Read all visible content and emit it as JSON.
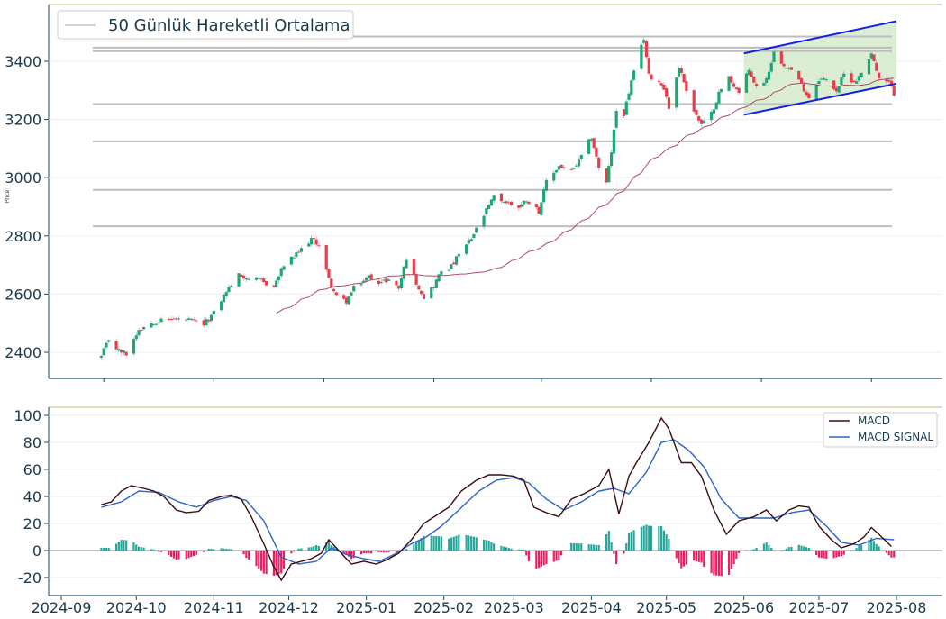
{
  "chart_data": [
    {
      "type": "candlestick",
      "panel": "price",
      "ylabel": "Price",
      "ylim": [
        2355,
        3570
      ],
      "yticks": [
        2400,
        2600,
        2800,
        3000,
        3200,
        3400
      ],
      "legend": {
        "placement": "top-left",
        "entries": [
          "50 Günlük Hareketli Ortalama"
        ]
      },
      "grid": true,
      "colors": {
        "up": "#1aa877",
        "down": "#ee3b4a",
        "ma": "#b04a6a",
        "level": "#bdbdbd",
        "channel": "#1020e6",
        "channel_fill": "#cfe8c4"
      },
      "close_anchors": [
        [
          "2024-09-17",
          2385
        ],
        [
          "2024-09-20",
          2445
        ],
        [
          "2024-09-24",
          2405
        ],
        [
          "2024-09-27",
          2395
        ],
        [
          "2024-10-02",
          2480
        ],
        [
          "2024-10-08",
          2505
        ],
        [
          "2024-10-15",
          2515
        ],
        [
          "2024-10-22",
          2510
        ],
        [
          "2024-10-28",
          2495
        ],
        [
          "2024-11-01",
          2535
        ],
        [
          "2024-11-06",
          2610
        ],
        [
          "2024-11-11",
          2665
        ],
        [
          "2024-11-15",
          2655
        ],
        [
          "2024-11-20",
          2645
        ],
        [
          "2024-11-25",
          2625
        ],
        [
          "2024-11-29",
          2700
        ],
        [
          "2024-12-04",
          2735
        ],
        [
          "2024-12-10",
          2790
        ],
        [
          "2024-12-13",
          2770
        ],
        [
          "2024-12-17",
          2650
        ],
        [
          "2024-12-20",
          2590
        ],
        [
          "2024-12-24",
          2575
        ],
        [
          "2024-12-27",
          2620
        ],
        [
          "2025-01-02",
          2660
        ],
        [
          "2025-01-07",
          2640
        ],
        [
          "2025-01-10",
          2650
        ],
        [
          "2025-01-14",
          2620
        ],
        [
          "2025-01-17",
          2725
        ],
        [
          "2025-01-21",
          2640
        ],
        [
          "2025-01-24",
          2590
        ],
        [
          "2025-01-28",
          2630
        ],
        [
          "2025-01-31",
          2680
        ],
        [
          "2025-02-04",
          2695
        ],
        [
          "2025-02-07",
          2735
        ],
        [
          "2025-02-12",
          2790
        ],
        [
          "2025-02-17",
          2870
        ],
        [
          "2025-02-21",
          2935
        ],
        [
          "2025-02-26",
          2915
        ],
        [
          "2025-03-03",
          2900
        ],
        [
          "2025-03-06",
          2925
        ],
        [
          "2025-03-11",
          2885
        ],
        [
          "2025-03-14",
          2985
        ],
        [
          "2025-03-19",
          3040
        ],
        [
          "2025-03-24",
          3020
        ],
        [
          "2025-03-27",
          3055
        ],
        [
          "2025-04-01",
          3140
        ],
        [
          "2025-04-04",
          3035
        ],
        [
          "2025-04-07",
          2980
        ],
        [
          "2025-04-09",
          3090
        ],
        [
          "2025-04-11",
          3230
        ],
        [
          "2025-04-14",
          3220
        ],
        [
          "2025-04-17",
          3330
        ],
        [
          "2025-04-22",
          3480
        ],
        [
          "2025-04-24",
          3350
        ],
        [
          "2025-04-28",
          3330
        ],
        [
          "2025-04-30",
          3310
        ],
        [
          "2025-05-02",
          3240
        ],
        [
          "2025-05-06",
          3380
        ],
        [
          "2025-05-08",
          3330
        ],
        [
          "2025-05-12",
          3230
        ],
        [
          "2025-05-15",
          3180
        ],
        [
          "2025-05-19",
          3220
        ],
        [
          "2025-05-22",
          3290
        ],
        [
          "2025-05-26",
          3345
        ],
        [
          "2025-05-30",
          3290
        ],
        [
          "2025-06-03",
          3370
        ],
        [
          "2025-06-06",
          3310
        ],
        [
          "2025-06-10",
          3340
        ],
        [
          "2025-06-13",
          3430
        ],
        [
          "2025-06-17",
          3390
        ],
        [
          "2025-06-20",
          3370
        ],
        [
          "2025-06-24",
          3320
        ],
        [
          "2025-06-27",
          3275
        ],
        [
          "2025-07-01",
          3340
        ],
        [
          "2025-07-04",
          3335
        ],
        [
          "2025-07-08",
          3300
        ],
        [
          "2025-07-11",
          3355
        ],
        [
          "2025-07-15",
          3330
        ],
        [
          "2025-07-17",
          3345
        ],
        [
          "2025-07-22",
          3430
        ],
        [
          "2025-07-25",
          3335
        ],
        [
          "2025-07-29",
          3325
        ],
        [
          "2025-07-31",
          3290
        ]
      ],
      "ma_start": "2024-11-26",
      "horizontal_levels": [
        3485,
        3447,
        3435,
        3253,
        3125,
        2958,
        2833
      ],
      "channel": {
        "upper": [
          [
            "2025-06-01",
            3427
          ],
          [
            "2025-08-01",
            3538
          ]
        ],
        "lower": [
          [
            "2025-06-01",
            3216
          ],
          [
            "2025-08-01",
            3323
          ]
        ]
      }
    },
    {
      "type": "line+bar",
      "panel": "macd",
      "ylim": [
        -30,
        105
      ],
      "yticks": [
        -20,
        0,
        20,
        40,
        60,
        80,
        100
      ],
      "xticks": [
        "2024-09",
        "2024-10",
        "2024-11",
        "2024-12",
        "2025-01",
        "2025-02",
        "2025-03",
        "2025-04",
        "2025-05",
        "2025-06",
        "2025-07",
        "2025-08"
      ],
      "legend": {
        "placement": "top-right",
        "entries": [
          "MACD",
          "MACD SIGNAL"
        ]
      },
      "grid": true,
      "colors": {
        "macd": "#3a0d0d",
        "signal": "#2d62c8",
        "hist_pos": "#26a69a",
        "hist_neg": "#e91e63"
      },
      "macd_anchors": [
        [
          "2024-09-17",
          34
        ],
        [
          "2024-09-21",
          36
        ],
        [
          "2024-09-25",
          44
        ],
        [
          "2024-09-29",
          48
        ],
        [
          "2024-10-04",
          46
        ],
        [
          "2024-10-08",
          44
        ],
        [
          "2024-10-12",
          40
        ],
        [
          "2024-10-17",
          30
        ],
        [
          "2024-10-21",
          28
        ],
        [
          "2024-10-26",
          29
        ],
        [
          "2024-10-30",
          37
        ],
        [
          "2024-11-04",
          40
        ],
        [
          "2024-11-08",
          41
        ],
        [
          "2024-11-12",
          38
        ],
        [
          "2024-11-16",
          25
        ],
        [
          "2024-11-21",
          5
        ],
        [
          "2024-11-25",
          -12
        ],
        [
          "2024-11-28",
          -22
        ],
        [
          "2024-12-02",
          -10
        ],
        [
          "2024-12-06",
          -8
        ],
        [
          "2024-12-10",
          -6
        ],
        [
          "2024-12-14",
          -2
        ],
        [
          "2024-12-17",
          8
        ],
        [
          "2024-12-20",
          2
        ],
        [
          "2024-12-26",
          -10
        ],
        [
          "2024-12-31",
          -8
        ],
        [
          "2025-01-05",
          -10
        ],
        [
          "2025-01-09",
          -7
        ],
        [
          "2025-01-14",
          -2
        ],
        [
          "2025-01-19",
          8
        ],
        [
          "2025-01-24",
          20
        ],
        [
          "2025-01-29",
          26
        ],
        [
          "2025-02-03",
          32
        ],
        [
          "2025-02-08",
          44
        ],
        [
          "2025-02-14",
          52
        ],
        [
          "2025-02-19",
          56
        ],
        [
          "2025-02-24",
          56
        ],
        [
          "2025-03-01",
          55
        ],
        [
          "2025-03-05",
          52
        ],
        [
          "2025-03-09",
          32
        ],
        [
          "2025-03-14",
          28
        ],
        [
          "2025-03-19",
          25
        ],
        [
          "2025-03-24",
          38
        ],
        [
          "2025-03-29",
          42
        ],
        [
          "2025-04-04",
          48
        ],
        [
          "2025-04-08",
          60
        ],
        [
          "2025-04-12",
          27
        ],
        [
          "2025-04-16",
          55
        ],
        [
          "2025-04-19",
          65
        ],
        [
          "2025-04-24",
          80
        ],
        [
          "2025-04-29",
          98
        ],
        [
          "2025-05-02",
          90
        ],
        [
          "2025-05-07",
          65
        ],
        [
          "2025-05-11",
          65
        ],
        [
          "2025-05-15",
          55
        ],
        [
          "2025-05-20",
          30
        ],
        [
          "2025-05-25",
          12
        ],
        [
          "2025-05-30",
          22
        ],
        [
          "2025-06-05",
          25
        ],
        [
          "2025-06-10",
          30
        ],
        [
          "2025-06-14",
          22
        ],
        [
          "2025-06-19",
          30
        ],
        [
          "2025-06-23",
          33
        ],
        [
          "2025-06-27",
          32
        ],
        [
          "2025-07-01",
          18
        ],
        [
          "2025-07-06",
          8
        ],
        [
          "2025-07-10",
          2
        ],
        [
          "2025-07-15",
          5
        ],
        [
          "2025-07-19",
          10
        ],
        [
          "2025-07-22",
          17
        ],
        [
          "2025-07-25",
          12
        ],
        [
          "2025-07-30",
          3
        ]
      ],
      "signal_anchors": [
        [
          "2024-09-17",
          32
        ],
        [
          "2024-09-25",
          36
        ],
        [
          "2024-10-02",
          44
        ],
        [
          "2024-10-10",
          43
        ],
        [
          "2024-10-18",
          36
        ],
        [
          "2024-10-25",
          32
        ],
        [
          "2024-11-01",
          37
        ],
        [
          "2024-11-08",
          40
        ],
        [
          "2024-11-14",
          37
        ],
        [
          "2024-11-21",
          22
        ],
        [
          "2024-11-28",
          -5
        ],
        [
          "2024-12-05",
          -10
        ],
        [
          "2024-12-12",
          -8
        ],
        [
          "2024-12-18",
          2
        ],
        [
          "2024-12-24",
          -3
        ],
        [
          "2024-12-31",
          -6
        ],
        [
          "2025-01-06",
          -8
        ],
        [
          "2025-01-12",
          -3
        ],
        [
          "2025-01-19",
          5
        ],
        [
          "2025-01-25",
          10
        ],
        [
          "2025-01-31",
          18
        ],
        [
          "2025-02-07",
          30
        ],
        [
          "2025-02-15",
          44
        ],
        [
          "2025-02-22",
          52
        ],
        [
          "2025-03-01",
          54
        ],
        [
          "2025-03-07",
          50
        ],
        [
          "2025-03-14",
          38
        ],
        [
          "2025-03-21",
          30
        ],
        [
          "2025-03-28",
          36
        ],
        [
          "2025-04-04",
          44
        ],
        [
          "2025-04-10",
          46
        ],
        [
          "2025-04-16",
          42
        ],
        [
          "2025-04-23",
          58
        ],
        [
          "2025-04-29",
          80
        ],
        [
          "2025-05-04",
          82
        ],
        [
          "2025-05-10",
          74
        ],
        [
          "2025-05-16",
          62
        ],
        [
          "2025-05-23",
          38
        ],
        [
          "2025-05-30",
          24
        ],
        [
          "2025-06-06",
          24
        ],
        [
          "2025-06-13",
          24
        ],
        [
          "2025-06-20",
          28
        ],
        [
          "2025-06-27",
          30
        ],
        [
          "2025-07-04",
          18
        ],
        [
          "2025-07-10",
          6
        ],
        [
          "2025-07-17",
          4
        ],
        [
          "2025-07-24",
          9
        ],
        [
          "2025-07-31",
          8
        ]
      ]
    }
  ]
}
